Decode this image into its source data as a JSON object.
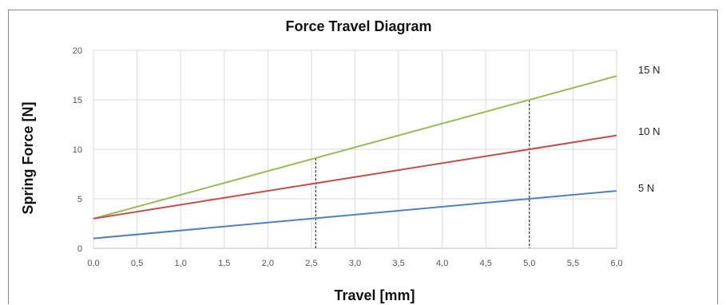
{
  "chart_data": {
    "type": "line",
    "title": "Force Travel Diagram",
    "xlabel": "Travel [mm]",
    "ylabel": "Spring Force [N]",
    "xlim": [
      0,
      6
    ],
    "ylim": [
      0,
      20
    ],
    "x_ticks": [
      "0,0",
      "0,5",
      "1,0",
      "1,5",
      "2,0",
      "2,5",
      "3,0",
      "3,5",
      "4,0",
      "4,5",
      "5,0",
      "5,5",
      "6,0"
    ],
    "y_ticks": [
      "0",
      "5",
      "10",
      "15",
      "20"
    ],
    "grid": true,
    "series": [
      {
        "name": "15 N",
        "color": "#9bbb59",
        "x": [
          0,
          6
        ],
        "y": [
          3.0,
          17.4
        ]
      },
      {
        "name": "10 N",
        "color": "#c0504d",
        "x": [
          0,
          6
        ],
        "y": [
          3.0,
          11.4
        ]
      },
      {
        "name": "5 N",
        "color": "#4f81bd",
        "x": [
          0,
          6
        ],
        "y": [
          1.0,
          5.8
        ]
      }
    ],
    "reference_lines": [
      {
        "x": 2.55,
        "y": 9.1
      },
      {
        "x": 5.0,
        "y": 15.0
      }
    ]
  }
}
